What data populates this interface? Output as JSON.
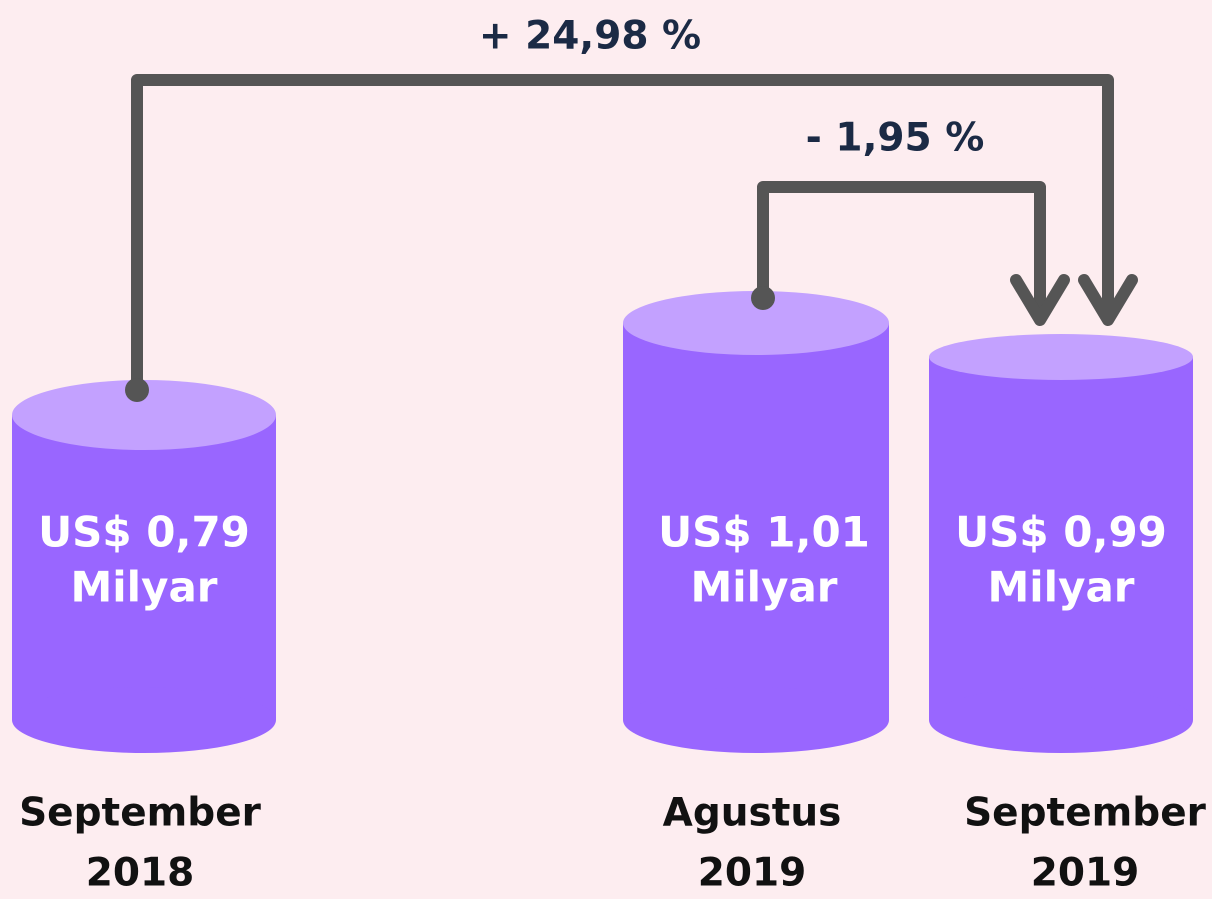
{
  "changes": [
    "+ 24,98 %",
    "- 1,95 %"
  ],
  "items": [
    {
      "value": [
        "US$ 0,79",
        "Milyar"
      ],
      "period": [
        "September",
        "2018"
      ]
    },
    {
      "value": [
        "US$ 1,01",
        "Milyar"
      ],
      "period": [
        "Agustus",
        "2019"
      ]
    },
    {
      "value": [
        "US$ 0,99",
        "Milyar"
      ],
      "period": [
        "September",
        "2019"
      ]
    }
  ]
}
